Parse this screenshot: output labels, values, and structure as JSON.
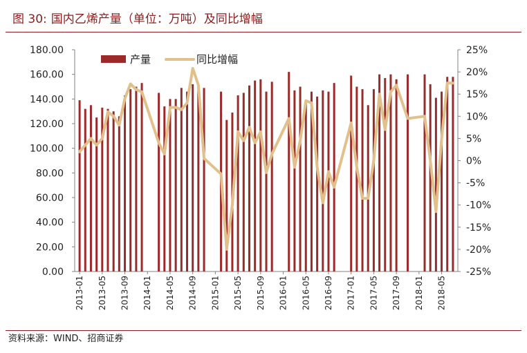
{
  "figure": {
    "title_number": "图 30:",
    "title": "国内乙烯产量（单位：万吨）及同比增幅",
    "source": "资料来源：WIND、招商证券"
  },
  "colors": {
    "bar": "#9b2b2b",
    "line": "#e2c08c",
    "title": "#8b1d1d",
    "axis": "#808080"
  },
  "chart_data": {
    "type": "bar",
    "title": "",
    "xlabel": "",
    "ylabel": "",
    "y_left_lim": [
      0,
      180
    ],
    "y_right_lim": [
      -25,
      25
    ],
    "y_left_ticks": [
      "0.00",
      "20.00",
      "40.00",
      "60.00",
      "80.00",
      "100.00",
      "120.00",
      "140.00",
      "160.00",
      "180.00"
    ],
    "y_right_ticks": [
      "-25%",
      "-20%",
      "-15%",
      "-10%",
      "-5%",
      "0%",
      "5%",
      "10%",
      "15%",
      "20%",
      "25%"
    ],
    "x_tick_labels": [
      "2013-01",
      "2013-05",
      "2013-09",
      "2014-01",
      "2014-05",
      "2014-09",
      "2015-01",
      "2015-05",
      "2015-09",
      "2016-01",
      "2016-05",
      "2016-09",
      "2017-01",
      "2017-05",
      "2017-09",
      "2018-01",
      "2018-05"
    ],
    "legend": {
      "position": "top-left",
      "bar_label": "产量",
      "line_label": "同比增幅"
    },
    "grid": false,
    "categories": [
      "2013-01",
      "2013-02",
      "2013-03",
      "2013-04",
      "2013-05",
      "2013-06",
      "2013-07",
      "2013-08",
      "2013-09",
      "2013-10",
      "2013-11",
      "2013-12",
      "2014-01",
      "2014-02",
      "2014-03",
      "2014-04",
      "2014-05",
      "2014-06",
      "2014-07",
      "2014-08",
      "2014-09",
      "2014-10",
      "2014-11",
      "2014-12",
      "2015-01",
      "2015-02",
      "2015-03",
      "2015-04",
      "2015-05",
      "2015-06",
      "2015-07",
      "2015-08",
      "2015-09",
      "2015-10",
      "2015-11",
      "2015-12",
      "2016-01",
      "2016-02",
      "2016-03",
      "2016-04",
      "2016-05",
      "2016-06",
      "2016-07",
      "2016-08",
      "2016-09",
      "2016-10",
      "2016-11",
      "2016-12",
      "2017-01",
      "2017-02",
      "2017-03",
      "2017-04",
      "2017-05",
      "2017-06",
      "2017-07",
      "2017-08",
      "2017-09",
      "2017-10",
      "2017-11",
      "2017-12",
      "2018-01",
      "2018-02",
      "2018-03",
      "2018-04",
      "2018-05",
      "2018-06",
      "2018-07"
    ],
    "series": [
      {
        "name": "产量",
        "kind": "bar",
        "axis": "left",
        "values": [
          139,
          132,
          135,
          125,
          133,
          132,
          130,
          126,
          143,
          148,
          150,
          153,
          null,
          null,
          145,
          134,
          140,
          140,
          149,
          146,
          152,
          152,
          149,
          null,
          null,
          146,
          123,
          129,
          143,
          145,
          151,
          155,
          156,
          146,
          154,
          null,
          null,
          162,
          147,
          150,
          137,
          146,
          142,
          147,
          146,
          153,
          null,
          null,
          159,
          150,
          148,
          135,
          148,
          160,
          157,
          160,
          156,
          null,
          160,
          null,
          null,
          160,
          152,
          141,
          146,
          158,
          158
        ]
      },
      {
        "name": "同比增幅",
        "kind": "line",
        "axis": "right",
        "values": [
          2,
          3.5,
          5,
          3.5,
          5,
          11,
          10,
          8,
          14,
          17.3,
          16,
          15.5,
          null,
          null,
          4,
          1.5,
          12,
          12,
          11.5,
          13,
          20.8,
          17,
          0.5,
          null,
          null,
          -3,
          -20,
          -10,
          6.5,
          4.5,
          7.5,
          4,
          6.5,
          -2.7,
          1.5,
          null,
          null,
          9.5,
          -1.5,
          4.5,
          13.5,
          13,
          -1.5,
          -9.5,
          -2.5,
          -6,
          null,
          null,
          8.5,
          -1.5,
          -8.5,
          -8.5,
          0,
          15,
          7,
          15.5,
          17,
          null,
          9.5,
          null,
          null,
          10,
          0,
          -11.5,
          5,
          17.5,
          17.5
        ]
      }
    ]
  }
}
